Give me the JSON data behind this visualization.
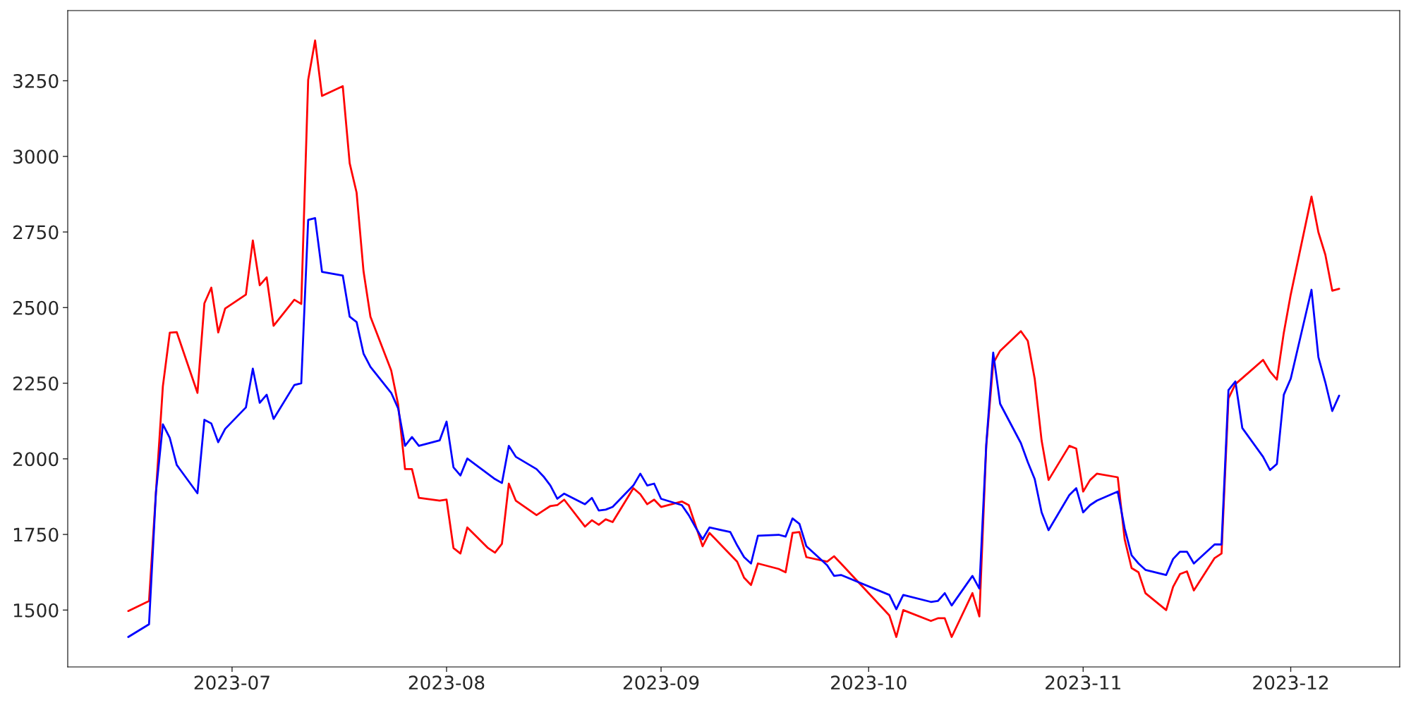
{
  "chart_data": {
    "type": "line",
    "series": [
      {
        "color": "#ff0000",
        "x": [
          "2023-06-16",
          "2023-06-19",
          "2023-06-20",
          "2023-06-21",
          "2023-06-22",
          "2023-06-23",
          "2023-06-26",
          "2023-06-27",
          "2023-06-28",
          "2023-06-29",
          "2023-06-30",
          "2023-07-03",
          "2023-07-04",
          "2023-07-05",
          "2023-07-06",
          "2023-07-07",
          "2023-07-10",
          "2023-07-11",
          "2023-07-12",
          "2023-07-13",
          "2023-07-14",
          "2023-07-17",
          "2023-07-18",
          "2023-07-19",
          "2023-07-20",
          "2023-07-21",
          "2023-07-24",
          "2023-07-25",
          "2023-07-26",
          "2023-07-27",
          "2023-07-28",
          "2023-07-31",
          "2023-08-01",
          "2023-08-02",
          "2023-08-03",
          "2023-08-04",
          "2023-08-07",
          "2023-08-08",
          "2023-08-09",
          "2023-08-10",
          "2023-08-11",
          "2023-08-14",
          "2023-08-15",
          "2023-08-16",
          "2023-08-17",
          "2023-08-18",
          "2023-08-21",
          "2023-08-22",
          "2023-08-23",
          "2023-08-24",
          "2023-08-25",
          "2023-08-28",
          "2023-08-29",
          "2023-08-30",
          "2023-08-31",
          "2023-09-01",
          "2023-09-04",
          "2023-09-05",
          "2023-09-06",
          "2023-09-07",
          "2023-09-08",
          "2023-09-12",
          "2023-09-13",
          "2023-09-14",
          "2023-09-15",
          "2023-09-18",
          "2023-09-19",
          "2023-09-20",
          "2023-09-21",
          "2023-09-22",
          "2023-09-25",
          "2023-09-26",
          "2023-09-27",
          "2023-10-04",
          "2023-10-05",
          "2023-10-06",
          "2023-10-10",
          "2023-10-11",
          "2023-10-12",
          "2023-10-13",
          "2023-10-16",
          "2023-10-17",
          "2023-10-18",
          "2023-10-19",
          "2023-10-20",
          "2023-10-23",
          "2023-10-24",
          "2023-10-25",
          "2023-10-26",
          "2023-10-27",
          "2023-10-30",
          "2023-10-31",
          "2023-11-01",
          "2023-11-02",
          "2023-11-03",
          "2023-11-06",
          "2023-11-07",
          "2023-11-08",
          "2023-11-09",
          "2023-11-10",
          "2023-11-13",
          "2023-11-14",
          "2023-11-15",
          "2023-11-16",
          "2023-11-17",
          "2023-11-20",
          "2023-11-21",
          "2023-11-22",
          "2023-11-23",
          "2023-11-27",
          "2023-11-28",
          "2023-11-29",
          "2023-11-30",
          "2023-12-01",
          "2023-12-04",
          "2023-12-05",
          "2023-12-06",
          "2023-12-07",
          "2023-12-08"
        ],
        "values": [
          1497,
          1530,
          1890,
          2240,
          2417,
          2419,
          2218,
          2514,
          2566,
          2418,
          2497,
          2543,
          2722,
          2574,
          2600,
          2440,
          2526,
          2512,
          3253,
          3383,
          3200,
          3232,
          2977,
          2880,
          2620,
          2470,
          2292,
          2180,
          1966,
          1966,
          1871,
          1862,
          1865,
          1705,
          1687,
          1773,
          1705,
          1690,
          1719,
          1918,
          1862,
          1814,
          1829,
          1844,
          1847,
          1865,
          1776,
          1797,
          1782,
          1800,
          1791,
          1903,
          1883,
          1850,
          1865,
          1841,
          1859,
          1847,
          1779,
          1711,
          1755,
          1660,
          1607,
          1583,
          1654,
          1636,
          1625,
          1755,
          1758,
          1675,
          1660,
          1678,
          1654,
          1482,
          1411,
          1500,
          1464,
          1473,
          1473,
          1411,
          1556,
          1479,
          2043,
          2316,
          2357,
          2422,
          2390,
          2265,
          2060,
          1930,
          2043,
          2034,
          1892,
          1930,
          1951,
          1939,
          1734,
          1639,
          1625,
          1556,
          1500,
          1577,
          1619,
          1628,
          1565,
          1672,
          1687,
          2200,
          2247,
          2327,
          2289,
          2262,
          2417,
          2543,
          2867,
          2749,
          2675,
          2556,
          2562
        ]
      },
      {
        "color": "#0000ff",
        "x": [
          "2023-06-16",
          "2023-06-19",
          "2023-06-20",
          "2023-06-21",
          "2023-06-22",
          "2023-06-23",
          "2023-06-26",
          "2023-06-27",
          "2023-06-28",
          "2023-06-29",
          "2023-06-30",
          "2023-07-03",
          "2023-07-04",
          "2023-07-05",
          "2023-07-06",
          "2023-07-07",
          "2023-07-10",
          "2023-07-11",
          "2023-07-12",
          "2023-07-13",
          "2023-07-14",
          "2023-07-17",
          "2023-07-18",
          "2023-07-19",
          "2023-07-20",
          "2023-07-21",
          "2023-07-24",
          "2023-07-25",
          "2023-07-26",
          "2023-07-27",
          "2023-07-28",
          "2023-07-31",
          "2023-08-01",
          "2023-08-02",
          "2023-08-03",
          "2023-08-04",
          "2023-08-08",
          "2023-08-09",
          "2023-08-10",
          "2023-08-11",
          "2023-08-14",
          "2023-08-15",
          "2023-08-16",
          "2023-08-17",
          "2023-08-18",
          "2023-08-21",
          "2023-08-22",
          "2023-08-23",
          "2023-08-24",
          "2023-08-25",
          "2023-08-28",
          "2023-08-29",
          "2023-08-30",
          "2023-08-31",
          "2023-09-01",
          "2023-09-04",
          "2023-09-05",
          "2023-09-06",
          "2023-09-07",
          "2023-09-08",
          "2023-09-11",
          "2023-09-12",
          "2023-09-13",
          "2023-09-14",
          "2023-09-15",
          "2023-09-18",
          "2023-09-19",
          "2023-09-20",
          "2023-09-21",
          "2023-09-22",
          "2023-09-25",
          "2023-09-26",
          "2023-09-27",
          "2023-10-04",
          "2023-10-05",
          "2023-10-06",
          "2023-10-10",
          "2023-10-11",
          "2023-10-12",
          "2023-10-13",
          "2023-10-16",
          "2023-10-17",
          "2023-10-18",
          "2023-10-19",
          "2023-10-20",
          "2023-10-23",
          "2023-10-24",
          "2023-10-25",
          "2023-10-26",
          "2023-10-27",
          "2023-10-30",
          "2023-10-31",
          "2023-11-01",
          "2023-11-02",
          "2023-11-03",
          "2023-11-06",
          "2023-11-07",
          "2023-11-08",
          "2023-11-09",
          "2023-11-10",
          "2023-11-13",
          "2023-11-14",
          "2023-11-15",
          "2023-11-16",
          "2023-11-17",
          "2023-11-20",
          "2023-11-21",
          "2023-11-22",
          "2023-11-23",
          "2023-11-24",
          "2023-11-27",
          "2023-11-28",
          "2023-11-29",
          "2023-11-30",
          "2023-12-01",
          "2023-12-04",
          "2023-12-05",
          "2023-12-06",
          "2023-12-07",
          "2023-12-08"
        ],
        "values": [
          1411,
          1453,
          1889,
          2114,
          2069,
          1980,
          1886,
          2129,
          2117,
          2055,
          2099,
          2170,
          2298,
          2185,
          2212,
          2132,
          2244,
          2250,
          2790,
          2796,
          2618,
          2606,
          2470,
          2452,
          2348,
          2304,
          2218,
          2167,
          2043,
          2072,
          2043,
          2061,
          2123,
          1972,
          1945,
          2001,
          1933,
          1920,
          2043,
          2007,
          1966,
          1942,
          1912,
          1868,
          1885,
          1850,
          1871,
          1829,
          1832,
          1841,
          1912,
          1951,
          1912,
          1918,
          1868,
          1847,
          1814,
          1773,
          1734,
          1773,
          1758,
          1714,
          1675,
          1654,
          1746,
          1749,
          1743,
          1803,
          1785,
          1711,
          1648,
          1613,
          1616,
          1550,
          1503,
          1550,
          1527,
          1530,
          1556,
          1515,
          1613,
          1571,
          2049,
          2351,
          2182,
          2052,
          1989,
          1933,
          1823,
          1764,
          1880,
          1903,
          1823,
          1847,
          1862,
          1892,
          1770,
          1681,
          1654,
          1633,
          1616,
          1669,
          1693,
          1693,
          1654,
          1717,
          1717,
          2227,
          2256,
          2102,
          2007,
          1963,
          1983,
          2212,
          2265,
          2559,
          2336,
          2253,
          2158,
          2209
        ]
      }
    ],
    "xlim": [
      "2023-06-07T06:00",
      "2023-12-16T18:00"
    ],
    "xticks": [
      {
        "value": "2023-07-01",
        "label": "2023-07"
      },
      {
        "value": "2023-08-01",
        "label": "2023-08"
      },
      {
        "value": "2023-09-01",
        "label": "2023-09"
      },
      {
        "value": "2023-10-01",
        "label": "2023-10"
      },
      {
        "value": "2023-11-01",
        "label": "2023-11"
      },
      {
        "value": "2023-12-01",
        "label": "2023-12"
      }
    ],
    "ylim": [
      1312,
      3482
    ],
    "yticks": [
      1500,
      1750,
      2000,
      2250,
      2500,
      2750,
      3000,
      3250
    ],
    "grid": false
  }
}
